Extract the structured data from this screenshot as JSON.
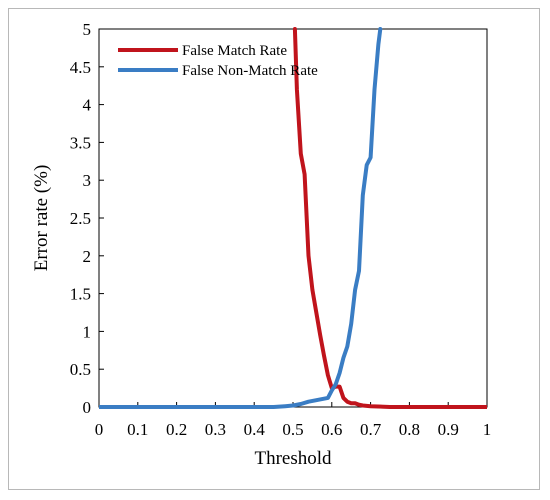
{
  "chart_data": {
    "type": "line",
    "title": "",
    "xlabel": "Threshold",
    "ylabel": "Error rate (%)",
    "xlim": [
      0,
      1
    ],
    "ylim": [
      0,
      5
    ],
    "x_ticks": [
      "0",
      "0.1",
      "0.2",
      "0.3",
      "0.4",
      "0.5",
      "0.6",
      "0.7",
      "0.8",
      "0.9",
      "1"
    ],
    "y_ticks": [
      "0",
      "0.5",
      "1",
      "1.5",
      "2",
      "2.5",
      "3",
      "3.5",
      "4",
      "4.5",
      "5"
    ],
    "grid": false,
    "legend_position": "top-left",
    "series": [
      {
        "name": "False Match Rate",
        "color": "#c0141c",
        "points": [
          [
            0.505,
            5.0
          ],
          [
            0.51,
            4.2
          ],
          [
            0.52,
            3.35
          ],
          [
            0.53,
            3.08
          ],
          [
            0.54,
            2.0
          ],
          [
            0.55,
            1.55
          ],
          [
            0.56,
            1.25
          ],
          [
            0.57,
            0.95
          ],
          [
            0.58,
            0.68
          ],
          [
            0.59,
            0.42
          ],
          [
            0.6,
            0.25
          ],
          [
            0.61,
            0.27
          ],
          [
            0.62,
            0.27
          ],
          [
            0.63,
            0.12
          ],
          [
            0.64,
            0.07
          ],
          [
            0.65,
            0.05
          ],
          [
            0.66,
            0.05
          ],
          [
            0.67,
            0.03
          ],
          [
            0.68,
            0.02
          ],
          [
            0.7,
            0.01
          ],
          [
            0.75,
            0.0
          ],
          [
            0.8,
            0.0
          ],
          [
            0.9,
            0.0
          ],
          [
            1.0,
            0.0
          ]
        ]
      },
      {
        "name": "False Non-Match Rate",
        "color": "#3a7dc4",
        "points": [
          [
            0.0,
            0.0
          ],
          [
            0.1,
            0.0
          ],
          [
            0.2,
            0.0
          ],
          [
            0.3,
            0.0
          ],
          [
            0.4,
            0.0
          ],
          [
            0.45,
            0.0
          ],
          [
            0.48,
            0.01
          ],
          [
            0.5,
            0.02
          ],
          [
            0.52,
            0.04
          ],
          [
            0.54,
            0.07
          ],
          [
            0.56,
            0.09
          ],
          [
            0.58,
            0.11
          ],
          [
            0.59,
            0.12
          ],
          [
            0.6,
            0.22
          ],
          [
            0.61,
            0.3
          ],
          [
            0.62,
            0.45
          ],
          [
            0.63,
            0.65
          ],
          [
            0.64,
            0.8
          ],
          [
            0.65,
            1.1
          ],
          [
            0.66,
            1.55
          ],
          [
            0.67,
            1.8
          ],
          [
            0.68,
            2.8
          ],
          [
            0.69,
            3.2
          ],
          [
            0.7,
            3.3
          ],
          [
            0.71,
            4.2
          ],
          [
            0.72,
            4.8
          ],
          [
            0.725,
            5.0
          ]
        ]
      }
    ]
  }
}
